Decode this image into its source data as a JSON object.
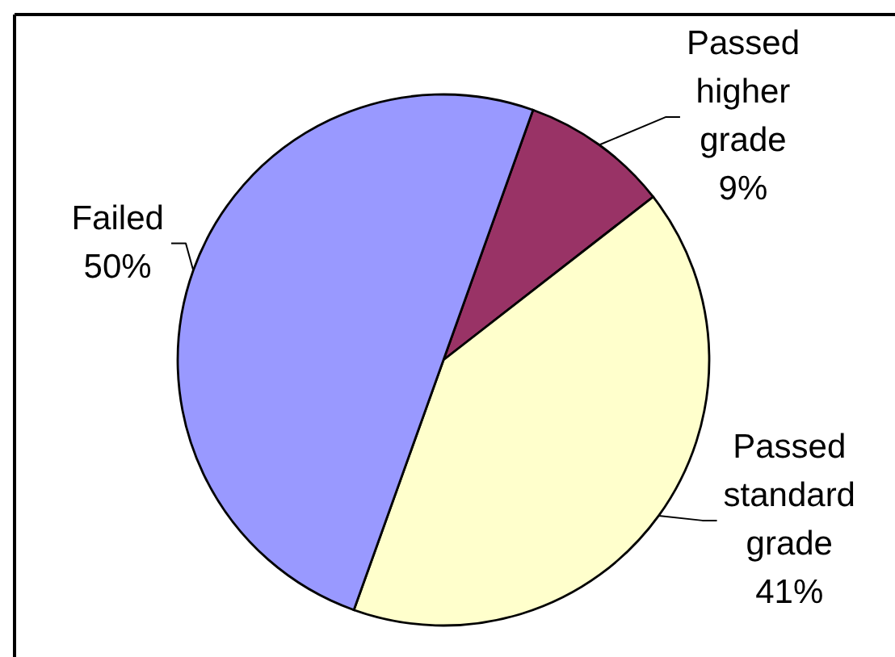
{
  "chart_data": {
    "type": "pie",
    "categories": [
      "Passed higher grade",
      "Passed standard grade",
      "Failed"
    ],
    "values": [
      9,
      41,
      50
    ],
    "colors": [
      "#993366",
      "#ffffcc",
      "#9999ff"
    ],
    "value_labels": [
      "9%",
      "41%",
      "50%"
    ]
  }
}
